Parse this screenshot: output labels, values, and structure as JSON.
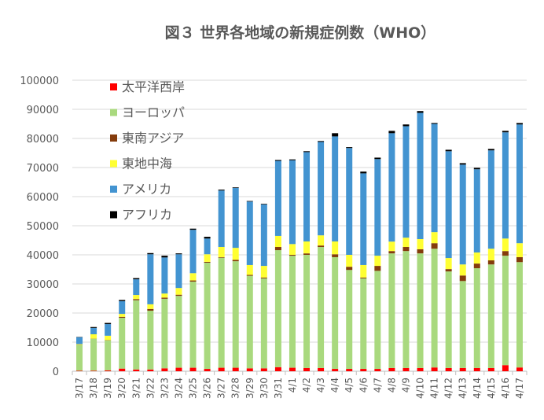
{
  "chart_data": {
    "type": "bar",
    "stacked": true,
    "title": "図３ 世界各地域の新規症例数（WHO）",
    "xlabel": "",
    "ylabel": "",
    "ylim": [
      0,
      100000
    ],
    "yticks": [
      0,
      10000,
      20000,
      30000,
      40000,
      50000,
      60000,
      70000,
      80000,
      90000,
      100000
    ],
    "grid": true,
    "legend_position": "top-left",
    "categories": [
      "3/17",
      "3/18",
      "3/19",
      "3/20",
      "3/21",
      "3/22",
      "3/23",
      "3/24",
      "3/25",
      "3/26",
      "3/27",
      "3/28",
      "3/29",
      "3/30",
      "3/31",
      "4/1",
      "4/2",
      "4/3",
      "4/4",
      "4/5",
      "4/6",
      "4/7",
      "4/8",
      "4/9",
      "4/10",
      "4/11",
      "4/12",
      "4/13",
      "4/14",
      "4/15",
      "4/16",
      "4/17"
    ],
    "series": [
      {
        "name": "太平洋西岸",
        "color": "#ff0000",
        "values": [
          200,
          200,
          300,
          900,
          600,
          600,
          1000,
          1200,
          1200,
          800,
          1200,
          1200,
          1000,
          1000,
          1400,
          1200,
          1100,
          1100,
          800,
          800,
          800,
          800,
          1100,
          1100,
          1100,
          1300,
          1100,
          1100,
          1100,
          1100,
          2100,
          1300
        ]
      },
      {
        "name": "ヨーロッパ",
        "color": "#a9d97e",
        "values": [
          8800,
          10950,
          10300,
          17460,
          23800,
          20200,
          23900,
          24700,
          29600,
          36500,
          37800,
          36600,
          31800,
          30900,
          40200,
          38500,
          38900,
          41600,
          38400,
          34000,
          31100,
          33700,
          39400,
          40200,
          39400,
          40800,
          33200,
          29900,
          34300,
          35600,
          37600,
          36200
        ]
      },
      {
        "name": "東南アジア",
        "color": "#843c0c",
        "values": [
          50,
          50,
          100,
          340,
          400,
          600,
          400,
          400,
          400,
          300,
          200,
          500,
          300,
          300,
          1100,
          300,
          500,
          500,
          1000,
          1100,
          300,
          1700,
          800,
          1400,
          1400,
          1900,
          800,
          1900,
          1600,
          1400,
          1600,
          1700
        ]
      },
      {
        "name": "東地中海",
        "color": "#ffff33",
        "values": [
          250,
          1500,
          1500,
          1000,
          1400,
          1600,
          1400,
          2300,
          2500,
          2600,
          3500,
          4100,
          3400,
          4000,
          3800,
          3700,
          4100,
          3500,
          4400,
          4100,
          4300,
          3500,
          3250,
          3200,
          3500,
          3800,
          3800,
          3800,
          3800,
          4000,
          4300,
          4800
        ]
      },
      {
        "name": "アメリカ",
        "color": "#4394d1",
        "values": [
          2400,
          2200,
          4000,
          4400,
          5400,
          17200,
          12400,
          11600,
          14900,
          5400,
          19400,
          20600,
          21800,
          21100,
          25800,
          28800,
          30700,
          32100,
          36100,
          36700,
          31500,
          33200,
          37250,
          38300,
          43400,
          37200,
          36700,
          34300,
          28600,
          33800,
          36500,
          40800
        ]
      },
      {
        "name": "アフリカ",
        "color": "#000000",
        "values": [
          100,
          300,
          400,
          400,
          400,
          400,
          600,
          300,
          400,
          600,
          300,
          200,
          200,
          200,
          300,
          300,
          300,
          300,
          1100,
          300,
          600,
          500,
          800,
          600,
          600,
          300,
          500,
          500,
          500,
          500,
          500,
          500
        ]
      }
    ]
  }
}
